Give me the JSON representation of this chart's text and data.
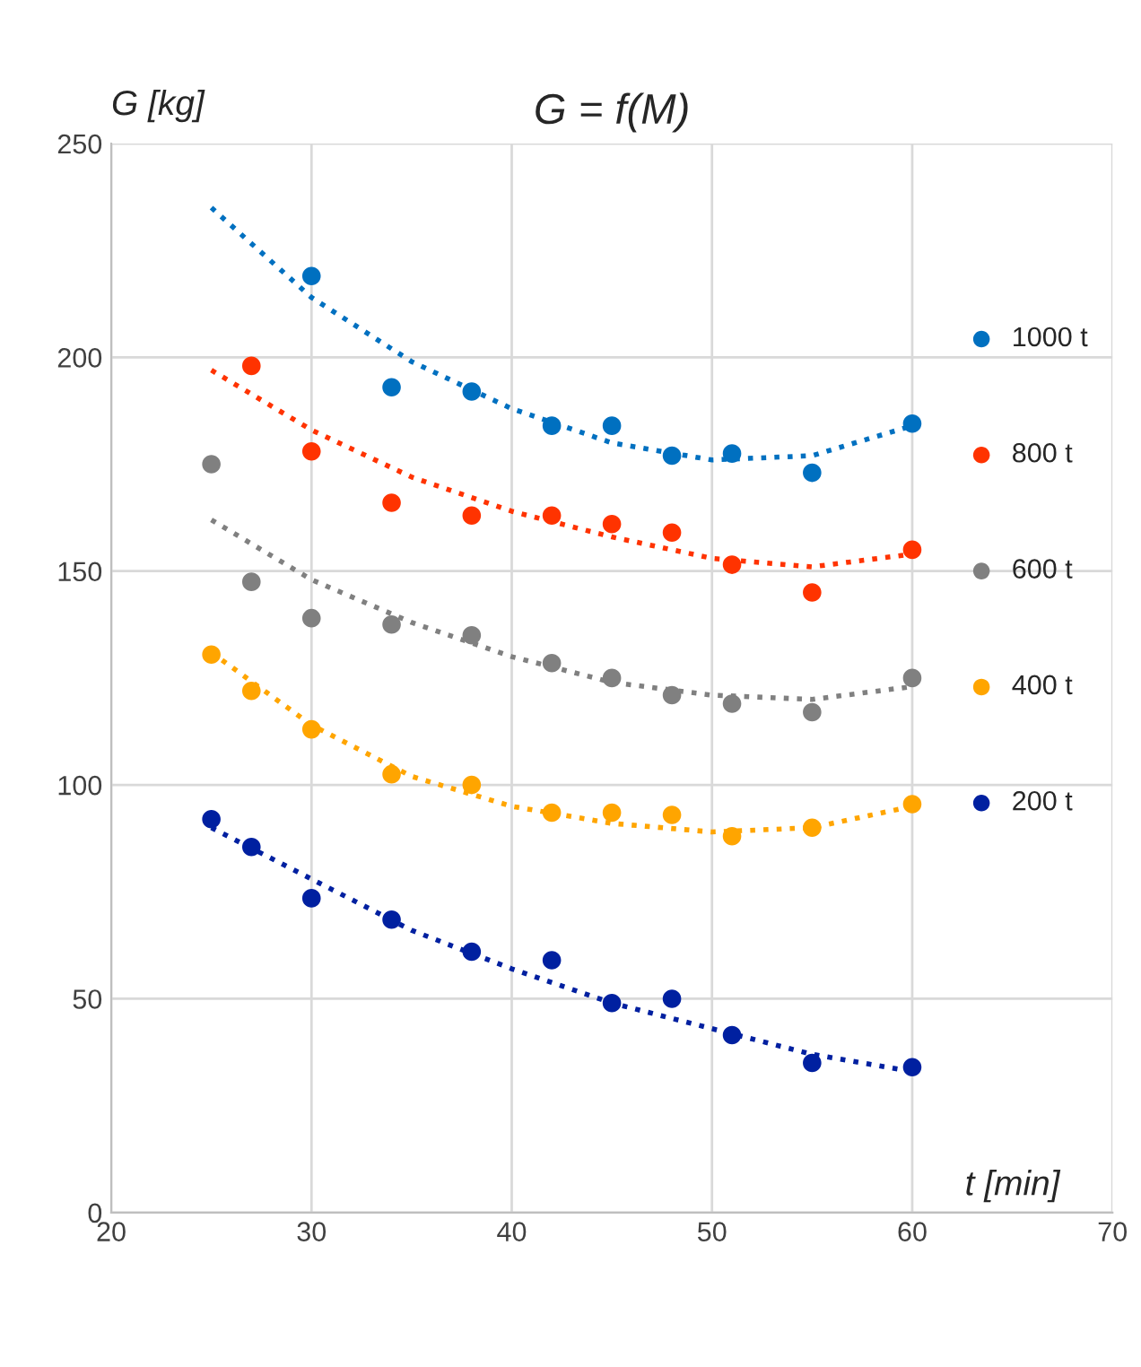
{
  "chart_data": {
    "type": "scatter",
    "title": "G = f(M)",
    "xlabel": "t [min]",
    "ylabel": "G [kg]",
    "xlim": [
      20,
      70
    ],
    "xticks": [
      20,
      30,
      40,
      50,
      60,
      70
    ],
    "ylim": [
      0,
      250
    ],
    "yticks": [
      0,
      50,
      100,
      150,
      200,
      250
    ],
    "grid": true,
    "legend": "right",
    "series": [
      {
        "name": "1000 t",
        "color": "#0070c0",
        "marker": "circle",
        "x": [
          30,
          34,
          38,
          42,
          45,
          48,
          51,
          55,
          60
        ],
        "values": [
          219,
          193,
          192,
          184,
          184,
          177,
          177.5,
          173,
          184.5
        ]
      },
      {
        "name": "800 t",
        "color": "#ff3300",
        "marker": "circle",
        "x": [
          27,
          30,
          34,
          38,
          42,
          45,
          48,
          51,
          55,
          60
        ],
        "values": [
          198,
          178,
          166,
          163,
          163,
          161,
          159,
          151.5,
          145,
          155
        ]
      },
      {
        "name": "600 t",
        "color": "#808080",
        "marker": "circle",
        "x": [
          25,
          27,
          30,
          34,
          38,
          42,
          45,
          48,
          51,
          55,
          60
        ],
        "values": [
          175,
          147.5,
          139,
          137.5,
          135,
          128.5,
          125,
          121,
          119,
          117,
          125
        ]
      },
      {
        "name": "400 t",
        "color": "#ffa500",
        "marker": "circle",
        "x": [
          25,
          27,
          30,
          34,
          38,
          42,
          45,
          48,
          51,
          55,
          60
        ],
        "values": [
          130.5,
          122,
          113,
          102.5,
          100,
          93.5,
          93.5,
          93,
          88,
          90,
          95.5
        ]
      },
      {
        "name": "200 t",
        "color": "#0020a0",
        "marker": "circle",
        "x": [
          25,
          27,
          30,
          34,
          38,
          42,
          45,
          48,
          51,
          55,
          60
        ],
        "values": [
          92,
          85.5,
          73.5,
          68.5,
          61,
          59,
          49,
          50,
          41.5,
          35,
          34
        ]
      },
      {
        "color": "#0070c0",
        "type": "line",
        "line_style": "dotted",
        "x": [
          25,
          30,
          35,
          40,
          45,
          50,
          55,
          60
        ],
        "values": [
          235,
          214,
          199,
          188,
          180,
          176,
          177,
          184
        ]
      },
      {
        "color": "#ff3300",
        "type": "line",
        "line_style": "dotted",
        "x": [
          25,
          30,
          35,
          40,
          45,
          50,
          55,
          60
        ],
        "values": [
          197,
          183,
          172,
          164,
          158,
          153,
          151,
          154
        ]
      },
      {
        "color": "#808080",
        "type": "line",
        "line_style": "dotted",
        "x": [
          25,
          30,
          35,
          40,
          45,
          50,
          55,
          60
        ],
        "values": [
          162,
          148,
          138,
          130,
          124,
          121,
          120,
          123
        ]
      },
      {
        "color": "#ffa500",
        "type": "line",
        "line_style": "dotted",
        "x": [
          25,
          30,
          35,
          40,
          45,
          50,
          55,
          60
        ],
        "values": [
          131,
          114,
          102,
          95,
          91,
          89,
          90,
          95
        ]
      },
      {
        "color": "#0020a0",
        "type": "line",
        "line_style": "dotted",
        "x": [
          25,
          30,
          35,
          40,
          45,
          50,
          55,
          60
        ],
        "values": [
          90,
          78,
          66,
          57,
          49,
          43,
          37,
          33
        ]
      }
    ]
  }
}
